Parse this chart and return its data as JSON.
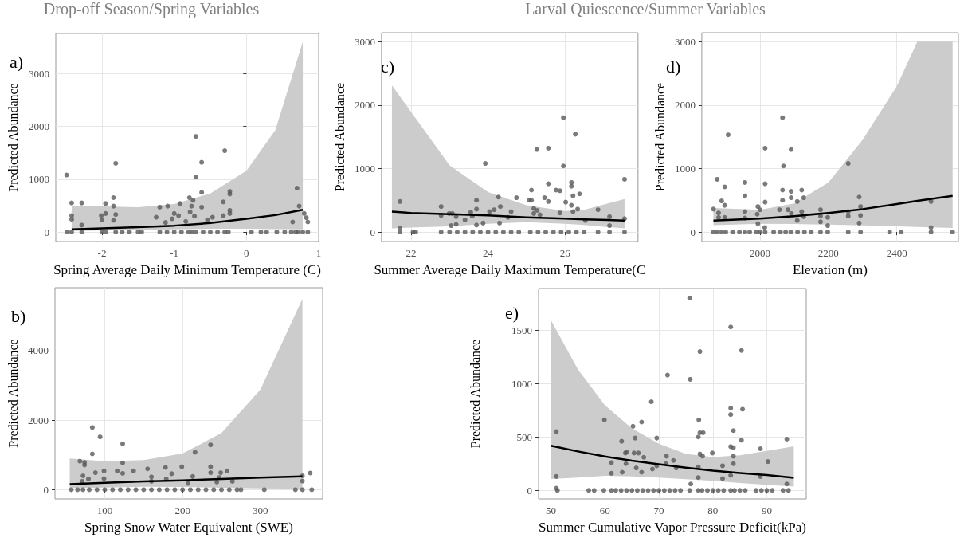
{
  "chart_data": [
    {
      "type": "scatter",
      "title": "Drop-off Season/Spring Variables",
      "xlabel": "Spring Average Daily Minimum Temperature (C)",
      "ylabel": "Predicted Abundance",
      "annotations": [
        "a)"
      ],
      "xlim": [
        -2.64,
        1.0
      ],
      "ylim": [
        -180,
        3760
      ],
      "xticks": [
        -2,
        -1,
        0,
        1
      ],
      "yticks": [
        0,
        1000,
        2000,
        3000
      ],
      "grid": true,
      "marker": "circle",
      "series": [
        {
          "type": "scatter",
          "color": "#595959",
          "x": [
            -2.49,
            -2.42,
            -2.42,
            -2.42,
            -2.28,
            -2.28,
            -2.01,
            -2.0,
            -1.95,
            -1.95,
            -1.81,
            -1.84,
            -1.84,
            -1.84,
            -1.81,
            -1.25,
            -1.2,
            -1.09,
            -1.12,
            -1.0,
            -0.94,
            -0.92,
            -1.03,
            -0.7,
            -0.7,
            -0.62,
            -0.62,
            -0.62,
            -0.79,
            -0.74,
            -0.76,
            -0.78,
            -0.72,
            -0.84,
            -0.3,
            -0.32,
            -0.32,
            -0.23,
            -0.23,
            -0.23,
            -0.23,
            -0.47,
            -0.54,
            0.7,
            0.73,
            0.64,
            0.8,
            0.83,
            0.85,
            -2.48,
            -2.42,
            -2.28,
            -2.0,
            -1.95,
            -1.81,
            -1.72,
            -1.62,
            -1.5,
            -1.45,
            -1.2,
            -1.1,
            -1.0,
            -0.9,
            -0.8,
            -0.75,
            -0.7,
            -0.6,
            -0.5,
            -0.4,
            -0.3,
            -0.25,
            0.07,
            0.2,
            0.28,
            0.42,
            0.53,
            0.62,
            0.68,
            0.72,
            0.78,
            0.85
          ],
          "values": [
            1080,
            550,
            310,
            240,
            550,
            130,
            310,
            230,
            350,
            540,
            1300,
            650,
            490,
            220,
            330,
            280,
            470,
            490,
            180,
            350,
            310,
            540,
            250,
            1810,
            1040,
            1320,
            750,
            470,
            650,
            600,
            490,
            380,
            300,
            200,
            1540,
            570,
            310,
            770,
            720,
            410,
            350,
            280,
            230,
            830,
            490,
            190,
            350,
            270,
            190,
            0,
            0,
            0,
            0,
            0,
            0,
            0,
            0,
            0,
            0,
            0,
            0,
            0,
            0,
            0,
            0,
            0,
            0,
            0,
            0,
            0,
            0,
            0,
            0,
            0,
            0,
            0,
            0,
            0,
            0,
            0,
            0
          ]
        },
        {
          "type": "line",
          "color": "#000000",
          "marker": "none",
          "x": [
            -2.42,
            -1.5,
            -1,
            -0.5,
            0,
            0.4,
            0.78
          ],
          "values": [
            50,
            90,
            120,
            170,
            250,
            320,
            420
          ],
          "lower": [
            20,
            40,
            50,
            60,
            60,
            55,
            50
          ],
          "upper": [
            500,
            470,
            530,
            730,
            1160,
            1930,
            3600
          ]
        }
      ]
    },
    {
      "type": "scatter",
      "title": "Larval Quiescence/Summer Variables",
      "xlabel": "Summer Average Daily Maximum Temperature(C",
      "ylabel": "Predicted Abundance",
      "annotations": [
        "c)"
      ],
      "xlim": [
        21.23,
        27.9
      ],
      "ylim": [
        -150,
        3140
      ],
      "xticks": [
        22,
        24,
        26
      ],
      "yticks": [
        0,
        1000,
        2000,
        3000
      ],
      "grid": true,
      "marker": "circle",
      "series": [
        {
          "type": "scatter",
          "color": "#595959",
          "x": [
            21.71,
            21.71,
            22.78,
            22.78,
            22.99,
            23.07,
            23.17,
            23.04,
            23.17,
            23.4,
            23.55,
            23.59,
            23.7,
            23.7,
            23.7,
            23.87,
            23.93,
            24.04,
            24.16,
            24.27,
            24.32,
            24.3,
            24.6,
            24.74,
            24.52,
            25.13,
            25.07,
            25.13,
            25.19,
            25.19,
            25.27,
            25.28,
            25.35,
            25.57,
            25.57,
            25.47,
            25.57,
            25.77,
            25.87,
            25.87,
            25.96,
            25.96,
            26.27,
            26.17,
            26.17,
            26.21,
            26.38,
            26.02,
            26.17,
            26.21,
            26.33,
            26.86,
            27.16,
            27.55,
            27.55,
            27.16,
            26.53,
            21.71,
            22.05,
            22.12,
            22.78,
            23.0,
            23.2,
            23.4,
            23.6,
            23.8,
            24.0,
            24.2,
            24.4,
            24.6,
            24.8,
            25.1,
            25.3,
            25.5,
            25.7,
            25.9,
            26.1,
            26.3,
            26.5,
            26.86,
            27.16,
            27.55
          ],
          "values": [
            480,
            60,
            400,
            260,
            290,
            290,
            240,
            100,
            120,
            190,
            310,
            250,
            500,
            360,
            110,
            140,
            1080,
            320,
            350,
            550,
            400,
            140,
            320,
            540,
            230,
            660,
            500,
            500,
            370,
            290,
            1300,
            340,
            270,
            1320,
            760,
            540,
            480,
            660,
            650,
            300,
            1800,
            1040,
            1540,
            780,
            720,
            570,
            600,
            470,
            420,
            320,
            360,
            350,
            240,
            830,
            210,
            100,
            180,
            0,
            0,
            0,
            0,
            0,
            0,
            0,
            0,
            0,
            0,
            0,
            0,
            0,
            0,
            0,
            0,
            0,
            0,
            0,
            0,
            0,
            0,
            0,
            0,
            0
          ]
        },
        {
          "type": "line",
          "color": "#000000",
          "marker": "none",
          "x": [
            21.5,
            22,
            23,
            24,
            25,
            26,
            26.5,
            27.55
          ],
          "values": [
            320,
            300,
            280,
            260,
            230,
            210,
            200,
            180
          ],
          "lower": [
            56,
            70,
            88,
            128,
            156,
            128,
            110,
            56
          ],
          "upper": [
            2310,
            1890,
            1050,
            630,
            420,
            330,
            350,
            520
          ]
        }
      ]
    },
    {
      "type": "scatter",
      "xlabel": "Elevation (m)",
      "ylabel": "Predicted Abundance",
      "annotations": [
        "d)"
      ],
      "xlim": [
        1830,
        2580
      ],
      "ylim": [
        -150,
        3140
      ],
      "xticks": [
        2000,
        2200,
        2400
      ],
      "yticks": [
        0,
        1000,
        2000,
        3000
      ],
      "grid": true,
      "marker": "circle",
      "series": [
        {
          "type": "scatter",
          "color": "#595959",
          "x": [
            1864,
            1875,
            1879,
            1879,
            1888,
            1897,
            1897,
            1907,
            1897,
            1956,
            1956,
            1956,
            1956,
            1994,
            2000,
            1992,
            1994,
            2015,
            2015,
            2015,
            2014,
            2057,
            2066,
            2069,
            2066,
            2066,
            2082,
            2091,
            2091,
            2091,
            2092,
            2109,
            2122,
            2128,
            2122,
            2128,
            2109,
            2177,
            2177,
            2177,
            2198,
            2198,
            2258,
            2258,
            2258,
            2290,
            2294,
            2294,
            2290,
            2500,
            2500,
            1864,
            1875,
            1888,
            1900,
            1920,
            1940,
            1956,
            1970,
            1990,
            2000,
            2015,
            2040,
            2060,
            2075,
            2090,
            2110,
            2130,
            2150,
            2177,
            2198,
            2258,
            2294,
            2379,
            2413,
            2500,
            2563
          ],
          "values": [
            360,
            830,
            300,
            230,
            490,
            710,
            420,
            1530,
            230,
            780,
            570,
            320,
            220,
            400,
            350,
            280,
            130,
            1320,
            760,
            470,
            70,
            350,
            1800,
            1040,
            660,
            500,
            350,
            1300,
            640,
            540,
            290,
            480,
            660,
            540,
            320,
            240,
            180,
            350,
            250,
            160,
            230,
            100,
            1080,
            320,
            250,
            550,
            400,
            260,
            140,
            480,
            70,
            0,
            0,
            0,
            0,
            0,
            0,
            0,
            0,
            0,
            0,
            0,
            0,
            0,
            0,
            0,
            0,
            0,
            0,
            0,
            0,
            0,
            0,
            0,
            0,
            0,
            0
          ]
        },
        {
          "type": "line",
          "color": "#000000",
          "marker": "none",
          "x": [
            1864,
            2000,
            2100,
            2200,
            2300,
            2400,
            2460,
            2563
          ],
          "values": [
            180,
            210,
            250,
            300,
            360,
            440,
            490,
            570
          ],
          "lower": [
            108,
            128,
            125,
            116,
            105,
            88,
            80,
            64
          ],
          "upper": [
            376,
            350,
            450,
            780,
            1450,
            2300,
            3000,
            3000
          ]
        }
      ]
    },
    {
      "type": "scatter",
      "xlabel": "Spring Snow Water Equivalent (SWE)",
      "ylabel": "Predicted Abundance",
      "annotations": [
        "b)"
      ],
      "xlim": [
        36,
        380
      ],
      "ylim": [
        -265,
        5810
      ],
      "xticks": [
        100,
        200,
        300
      ],
      "yticks": [
        0,
        2000,
        4000
      ],
      "grid": true,
      "marker": "circle",
      "series": [
        {
          "type": "scatter",
          "color": "#595959",
          "x": [
            68,
            74,
            74,
            72,
            71,
            79,
            84,
            84,
            88,
            94,
            99,
            99,
            123,
            123,
            123,
            116,
            137,
            155,
            160,
            178,
            186,
            199,
            213,
            216,
            236,
            236,
            236,
            249,
            257,
            247,
            244,
            264,
            354,
            354,
            364,
            160,
            179,
            207,
            57,
            65,
            72,
            80,
            90,
            100,
            110,
            120,
            130,
            140,
            150,
            160,
            170,
            180,
            190,
            200,
            210,
            220,
            230,
            240,
            250,
            260,
            270,
            275,
            305,
            345,
            354,
            366
          ],
          "values": [
            820,
            790,
            710,
            400,
            240,
            310,
            1790,
            1030,
            490,
            1520,
            540,
            320,
            1320,
            770,
            470,
            540,
            540,
            600,
            370,
            640,
            460,
            660,
            380,
            1080,
            1290,
            660,
            490,
            490,
            540,
            350,
            220,
            240,
            400,
            250,
            480,
            240,
            310,
            180,
            0,
            0,
            0,
            0,
            0,
            0,
            0,
            0,
            0,
            0,
            0,
            0,
            0,
            0,
            0,
            0,
            0,
            0,
            0,
            0,
            0,
            0,
            0,
            0,
            0,
            0,
            0,
            0
          ]
        },
        {
          "type": "line",
          "color": "#000000",
          "marker": "none",
          "x": [
            55,
            100,
            150,
            200,
            250,
            300,
            354
          ],
          "values": [
            160,
            200,
            240,
            270,
            310,
            350,
            380
          ],
          "lower": [
            50,
            60,
            85,
            80,
            55,
            40,
            30
          ],
          "upper": [
            900,
            820,
            850,
            1040,
            1630,
            2880,
            5490
          ]
        }
      ]
    },
    {
      "type": "scatter",
      "xlabel": "Summer Cumulative Vapor Pressure Deficit(kPa)",
      "ylabel": "Predicted Abundance",
      "annotations": [
        "e)"
      ],
      "xlim": [
        47.7,
        97.3
      ],
      "ylim": [
        -80,
        1890
      ],
      "xticks": [
        50,
        60,
        70,
        80,
        90
      ],
      "yticks": [
        0,
        500,
        1000,
        1500
      ],
      "grid": true,
      "marker": "circle",
      "series": [
        {
          "type": "scatter",
          "color": "#595959",
          "x": [
            51,
            51,
            51,
            59.9,
            61.2,
            61.2,
            63.1,
            63.8,
            64,
            63.9,
            63.2,
            65.2,
            65.6,
            65.4,
            66.2,
            66.8,
            67.2,
            66.8,
            65.8,
            68.6,
            69.6,
            68.8,
            69.6,
            71.4,
            71.6,
            71.3,
            72.7,
            73.2,
            75.7,
            75.8,
            75.9,
            77.4,
            77.6,
            77.3,
            77.6,
            78.2,
            77.6,
            78.1,
            77.3,
            77.3,
            79.9,
            81.8,
            81.8,
            83.3,
            83.3,
            83.3,
            83.3,
            83.8,
            83.8,
            83.8,
            83.8,
            85.3,
            85.5,
            85.3,
            88.8,
            88.8,
            90.2,
            93.7,
            93.7,
            83.3,
            51.2,
            57,
            58,
            59.8,
            61.2,
            62,
            63,
            64,
            65,
            66,
            67,
            68,
            69,
            70,
            71,
            72,
            73,
            74,
            75.7,
            77.3,
            78,
            79,
            80,
            81,
            82,
            83.3,
            84,
            85,
            86,
            88,
            89,
            90,
            91,
            93,
            94
          ],
          "values": [
            550,
            130,
            20,
            660,
            260,
            160,
            460,
            350,
            360,
            250,
            170,
            600,
            490,
            350,
            350,
            640,
            310,
            170,
            210,
            830,
            490,
            200,
            230,
            320,
            1080,
            250,
            280,
            210,
            1800,
            1040,
            60,
            660,
            1300,
            500,
            540,
            540,
            340,
            320,
            220,
            120,
            350,
            230,
            110,
            1530,
            770,
            710,
            410,
            400,
            560,
            320,
            250,
            1310,
            760,
            470,
            390,
            130,
            270,
            480,
            60,
            140,
            0,
            0,
            0,
            0,
            0,
            0,
            0,
            0,
            0,
            0,
            0,
            0,
            0,
            0,
            0,
            0,
            0,
            0,
            0,
            0,
            0,
            0,
            0,
            0,
            0,
            0,
            0,
            0,
            0,
            0,
            0,
            0,
            0,
            0,
            0
          ]
        },
        {
          "type": "line",
          "color": "#000000",
          "marker": "none",
          "x": [
            50,
            55,
            60,
            65,
            70,
            75,
            80,
            85,
            90,
            95
          ],
          "values": [
            418,
            365,
            317,
            278,
            245,
            213,
            185,
            163,
            144,
            118
          ],
          "lower": [
            106,
            120,
            137,
            130,
            120,
            105,
            89,
            70,
            53,
            36
          ],
          "upper": [
            1594,
            1133,
            797,
            581,
            437,
            341,
            312,
            329,
            370,
            413
          ]
        }
      ]
    }
  ]
}
